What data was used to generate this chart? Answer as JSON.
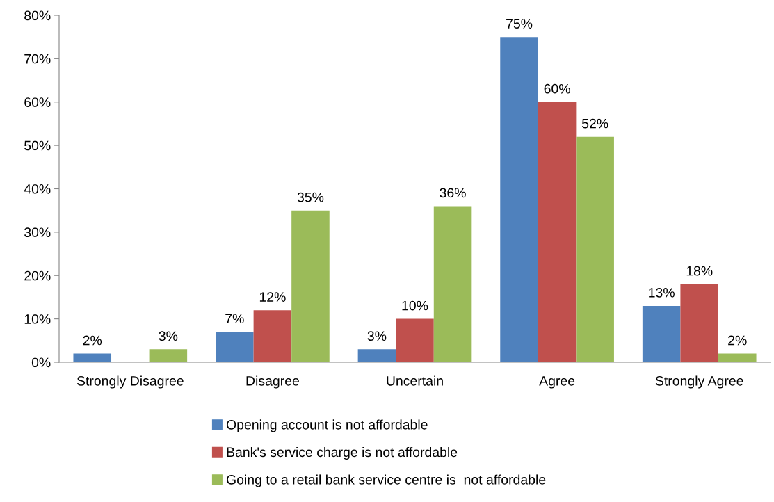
{
  "chart_data": {
    "type": "bar",
    "categories": [
      "Strongly Disagree",
      "Disagree",
      "Uncertain",
      "Agree",
      "Strongly Agree"
    ],
    "series": [
      {
        "name": "Opening account is not affordable",
        "color": "#4f81bd",
        "values": [
          2,
          7,
          3,
          75,
          13
        ],
        "value_labels": [
          "2%",
          "7%",
          "3%",
          "75%",
          "13%"
        ]
      },
      {
        "name": "Bank's service charge is not affordable",
        "color": "#c0504d",
        "values": [
          null,
          12,
          10,
          60,
          18
        ],
        "value_labels": [
          null,
          "12%",
          "10%",
          "60%",
          "18%"
        ]
      },
      {
        "name": "Going to a retail bank service centre is  not affordable",
        "color": "#9bbb59",
        "values": [
          3,
          35,
          36,
          52,
          2
        ],
        "value_labels": [
          "3%",
          "35%",
          "36%",
          "52%",
          "2%"
        ]
      }
    ],
    "ylim": [
      0,
      80
    ],
    "yticks": [
      {
        "value": 0,
        "label": "0%"
      },
      {
        "value": 10,
        "label": "10%"
      },
      {
        "value": 20,
        "label": "20%"
      },
      {
        "value": 30,
        "label": "30%"
      },
      {
        "value": 40,
        "label": "40%"
      },
      {
        "value": 50,
        "label": "50%"
      },
      {
        "value": 60,
        "label": "60%"
      },
      {
        "value": 70,
        "label": "70%"
      },
      {
        "value": 80,
        "label": "80%"
      }
    ],
    "grid": false,
    "legend": "bottom"
  }
}
